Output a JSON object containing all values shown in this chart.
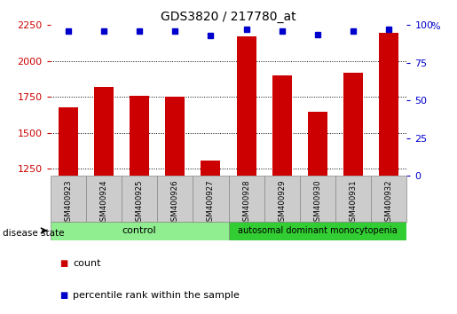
{
  "title": "GDS3820 / 217780_at",
  "samples": [
    "GSM400923",
    "GSM400924",
    "GSM400925",
    "GSM400926",
    "GSM400927",
    "GSM400928",
    "GSM400929",
    "GSM400930",
    "GSM400931",
    "GSM400932"
  ],
  "counts": [
    1680,
    1820,
    1755,
    1750,
    1305,
    2170,
    1900,
    1645,
    1920,
    2195
  ],
  "percentile_ranks": [
    96,
    96,
    96,
    96,
    93,
    97,
    96,
    94,
    96,
    97
  ],
  "ylim_left": [
    1200,
    2250
  ],
  "ylim_right": [
    0,
    100
  ],
  "yticks_left": [
    1250,
    1500,
    1750,
    2000,
    2250
  ],
  "yticks_right": [
    0,
    25,
    50,
    75,
    100
  ],
  "bar_color": "#cc0000",
  "dot_color": "#0000cc",
  "grid_color": "#000000",
  "control_color": "#90EE90",
  "disease_color": "#32CD32",
  "control_samples": 5,
  "disease_state_label": "disease state",
  "control_label": "control",
  "disease_label": "autosomal dominant monocytopenia",
  "legend_count": "count",
  "legend_percentile": "percentile rank within the sample",
  "bar_label_color": "#cc0000",
  "dot_label_color": "#0000cc",
  "figsize": [
    5.15,
    3.54
  ],
  "dpi": 100
}
